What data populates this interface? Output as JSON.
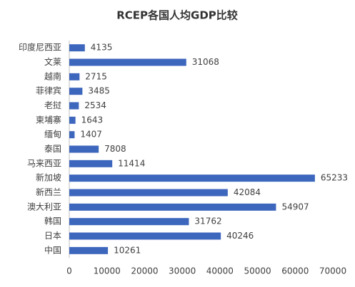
{
  "chart_data": {
    "type": "bar",
    "orientation": "horizontal",
    "title": "RCEP各国人均GDP比较",
    "categories": [
      "印度尼西亚",
      "文莱",
      "越南",
      "菲律宾",
      "老挝",
      "柬埔寨",
      "缅甸",
      "泰国",
      "马来西亚",
      "新加坡",
      "新西兰",
      "澳大利亚",
      "韩国",
      "日本",
      "中国"
    ],
    "values": [
      4135,
      31068,
      2715,
      3485,
      2534,
      1643,
      1407,
      7808,
      11414,
      65233,
      42084,
      54907,
      31762,
      40246,
      10261
    ],
    "color": "#3d66bd",
    "xlim": [
      0,
      70000
    ],
    "xticks": [
      0,
      10000,
      20000,
      30000,
      40000,
      50000,
      60000,
      70000
    ],
    "grid": false
  }
}
